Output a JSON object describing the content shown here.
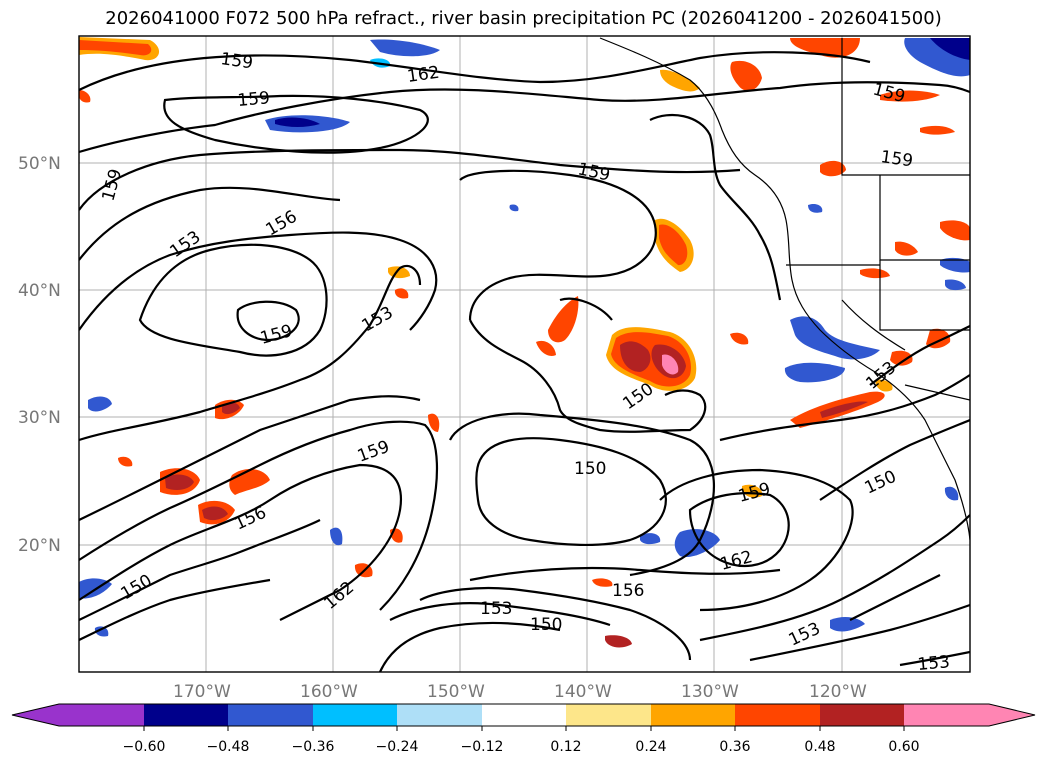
{
  "title": "2026041000 F072 500 hPa refract., river basin precipitation PC (2026041200 - 2026041500)",
  "map": {
    "lat_labels": [
      "50°N",
      "40°N",
      "30°N",
      "20°N"
    ],
    "lon_labels": [
      "170°W",
      "160°W",
      "150°W",
      "140°W",
      "130°W",
      "120°W"
    ],
    "contour_labels": [
      "159",
      "162",
      "159",
      "159",
      "159",
      "156",
      "153",
      "159",
      "153",
      "159",
      "159",
      "153",
      "150",
      "150",
      "159",
      "156",
      "159",
      "162",
      "150",
      "162",
      "150",
      "153",
      "156",
      "150",
      "153",
      "153"
    ]
  },
  "colorbar": {
    "tick_labels": [
      "−0.60",
      "−0.48",
      "−0.36",
      "−0.24",
      "−0.12",
      "0.12",
      "0.24",
      "0.36",
      "0.48",
      "0.60"
    ],
    "colors": [
      "#9933cc",
      "#00008b",
      "#3158d0",
      "#00bfff",
      "#aedff7",
      "#ffffff",
      "#fde68a",
      "#ffa500",
      "#ff4500",
      "#b22222",
      "#ff85b3"
    ]
  },
  "palette": {
    "orange": "#ffa500",
    "red_orange": "#ff4500",
    "dark_red": "#b22222",
    "pink": "#ff85b3",
    "yellow": "#fde68a",
    "blue": "#3158d0",
    "deep_blue": "#00008b",
    "sky_blue": "#00bfff",
    "light_blue": "#aedff7"
  }
}
